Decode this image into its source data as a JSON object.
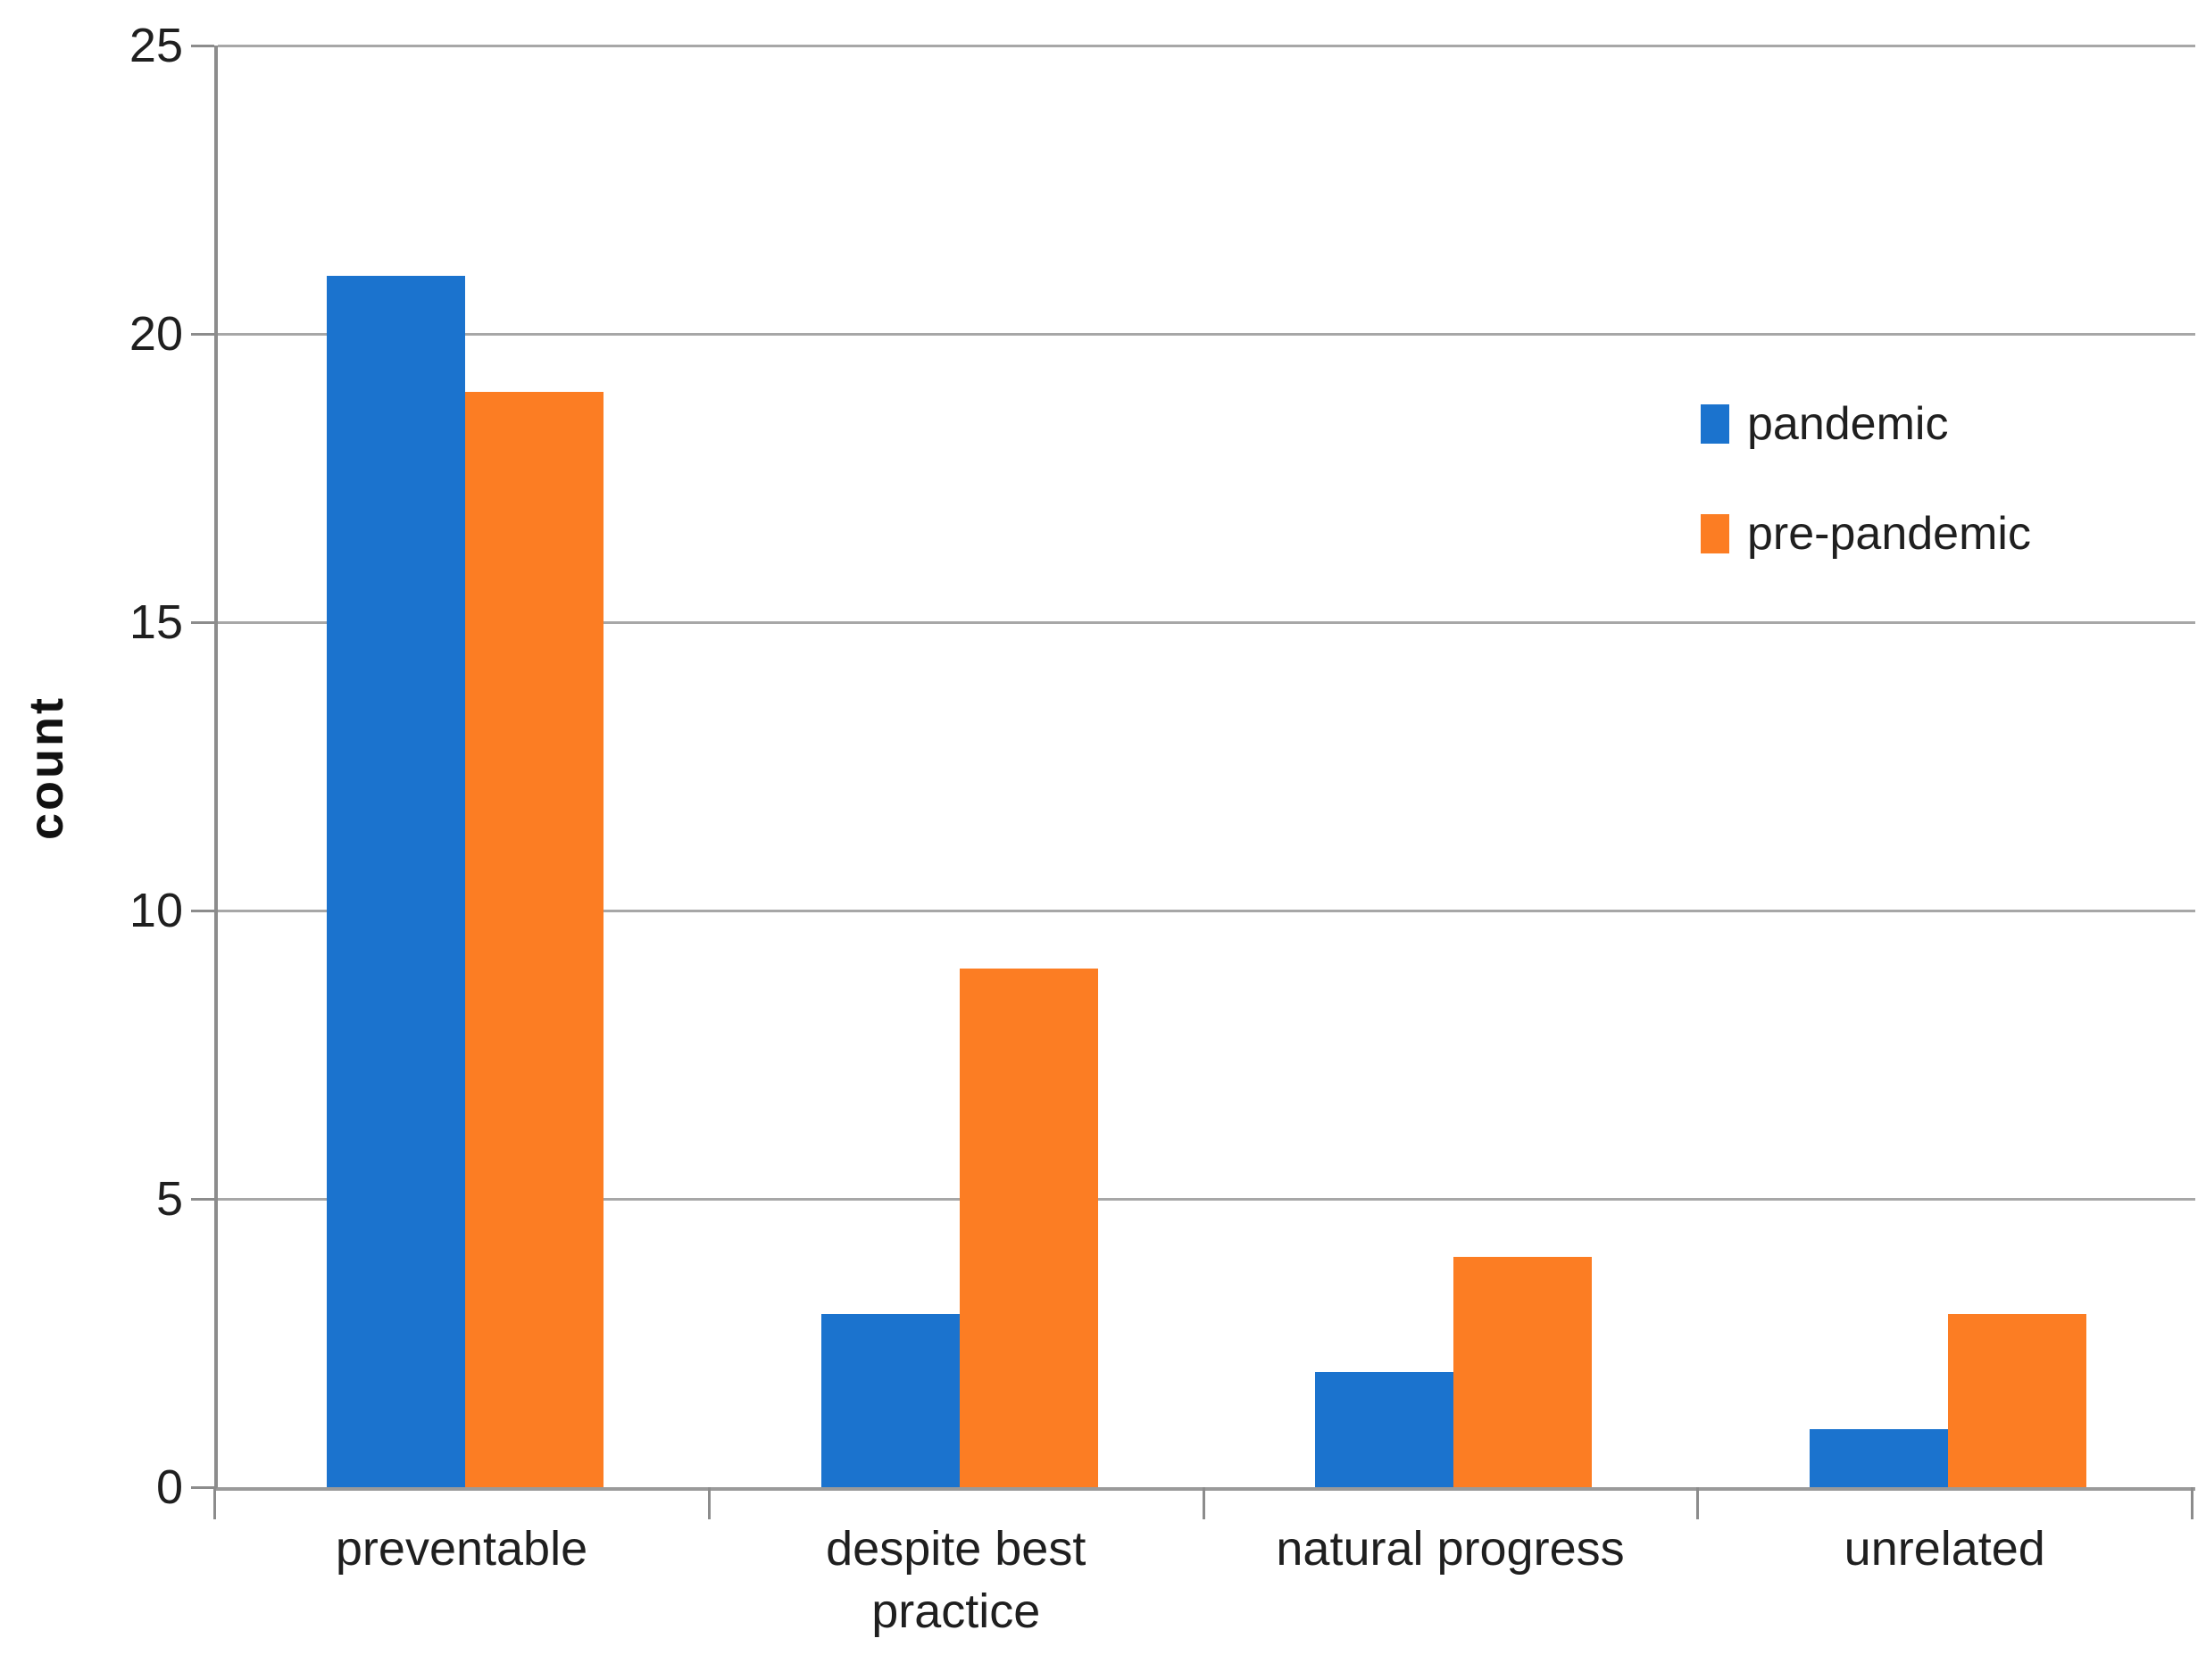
{
  "chart_data": {
    "type": "bar",
    "title": "",
    "xlabel": "",
    "ylabel": "count",
    "categories": [
      "preventable",
      "despite best\npractice",
      "natural progress",
      "unrelated"
    ],
    "series": [
      {
        "name": "pandemic",
        "color": "#1b73ce",
        "values": [
          21,
          3,
          2,
          1
        ]
      },
      {
        "name": "pre-pandemic",
        "color": "#fc7d23",
        "values": [
          19,
          9,
          4,
          3
        ]
      }
    ],
    "ylim": [
      0,
      25
    ],
    "yticks": [
      0,
      5,
      10,
      15,
      20,
      25
    ],
    "grid": true,
    "legend_position": "right"
  },
  "colors": {
    "gridline": "#a7a7a7",
    "axis": "#8c8c8c",
    "text": "#1f1f1f",
    "background": "#ffffff"
  }
}
